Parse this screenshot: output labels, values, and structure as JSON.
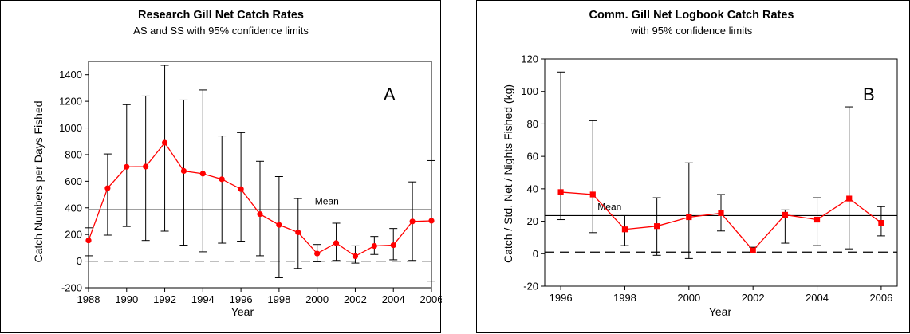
{
  "colors": {
    "series": "#ff0000",
    "error_bar": "#000000",
    "mean_line": "#000000",
    "zero_line": "#000000"
  },
  "chart_data": [
    {
      "type": "line",
      "title": "Research Gill Net Catch Rates",
      "subtitle": "AS and SS with 95% confidence limits",
      "xlabel": "Year",
      "ylabel": "Catch Numbers per Days Fished",
      "panel_letter": "A",
      "mean_label": "Mean",
      "mean_value": 385,
      "zero_reference": 0,
      "xlim": [
        1988,
        2006
      ],
      "ylim": [
        -200,
        1500
      ],
      "x_ticks": [
        1988,
        1990,
        1992,
        1994,
        1996,
        1998,
        2000,
        2002,
        2004,
        2006
      ],
      "y_ticks": [
        -200,
        0,
        200,
        400,
        600,
        800,
        1000,
        1200,
        1400
      ],
      "marker": "circle",
      "x": [
        1988,
        1989,
        1990,
        1991,
        1992,
        1993,
        1994,
        1995,
        1996,
        1997,
        1998,
        1999,
        2000,
        2001,
        2002,
        2003,
        2004,
        2005,
        2006
      ],
      "y": [
        155,
        548,
        708,
        710,
        889,
        677,
        657,
        615,
        541,
        353,
        272,
        216,
        57,
        136,
        37,
        114,
        120,
        298,
        303
      ],
      "lower": [
        40,
        195,
        260,
        155,
        225,
        120,
        70,
        135,
        150,
        40,
        -125,
        -55,
        -5,
        5,
        -15,
        50,
        10,
        5,
        -150
      ],
      "upper": [
        250,
        805,
        1175,
        1240,
        1470,
        1210,
        1285,
        940,
        965,
        750,
        635,
        470,
        125,
        285,
        115,
        185,
        245,
        595,
        755
      ]
    },
    {
      "type": "line",
      "title": "Comm. Gill Net Logbook Catch Rates",
      "subtitle": "with 95% confidence limits",
      "xlabel": "Year",
      "ylabel": "Catch / Std. Net / Nights Fished (kg)",
      "panel_letter": "B",
      "mean_label": "Mean",
      "mean_value": 23.5,
      "zero_reference": 1,
      "xlim": [
        1995.5,
        2006.5
      ],
      "ylim": [
        -20,
        120
      ],
      "x_ticks": [
        1996,
        1998,
        2000,
        2002,
        2004,
        2006
      ],
      "y_ticks": [
        -20,
        0,
        20,
        40,
        60,
        80,
        100,
        120
      ],
      "marker": "square",
      "x": [
        1996,
        1997,
        1998,
        1999,
        2000,
        2001,
        2002,
        2003,
        2004,
        2005,
        2006
      ],
      "y": [
        38,
        36.5,
        15,
        17,
        22.5,
        25,
        2,
        24,
        21,
        34,
        19
      ],
      "lower": [
        21,
        13,
        5,
        -1,
        -3,
        14,
        0.5,
        6.5,
        5,
        3,
        11
      ],
      "upper": [
        112,
        82,
        23.5,
        34.5,
        56,
        36.5,
        4,
        27,
        34.5,
        90.5,
        29
      ]
    }
  ]
}
